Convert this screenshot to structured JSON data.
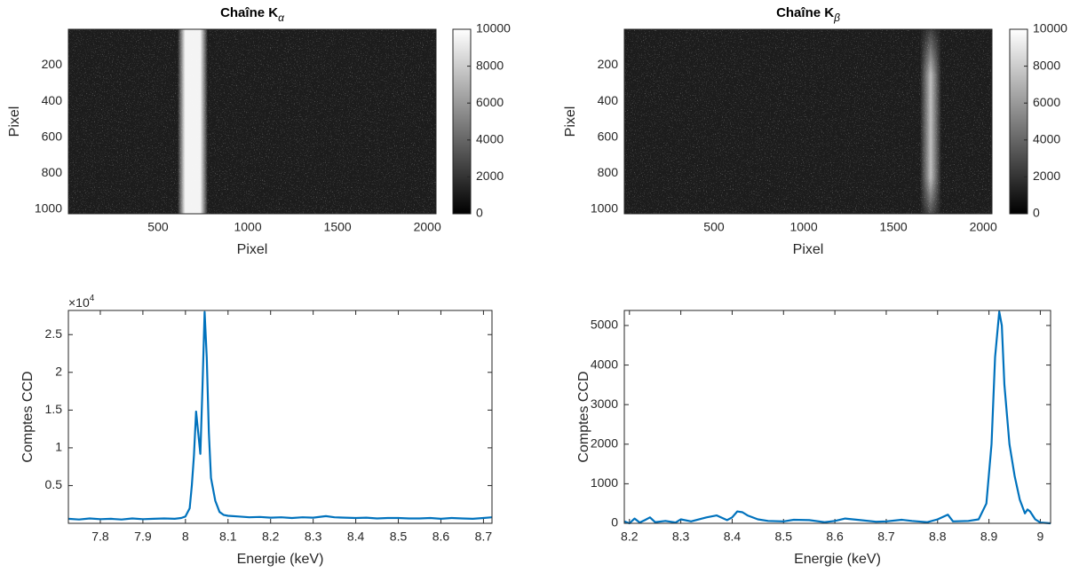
{
  "chart_data": [
    {
      "type": "image",
      "title": "Chaîne K",
      "title_subscript": "α",
      "xlabel": "Pixel",
      "ylabel": "Pixel",
      "xlim": [
        0.5,
        2048.5
      ],
      "ylim": [
        0.5,
        1024.5
      ],
      "y_reversed": true,
      "xticks": [
        500,
        1000,
        1500,
        2000
      ],
      "yticks": [
        200,
        400,
        600,
        800,
        1000
      ],
      "colorbar": {
        "clim": [
          0,
          10000
        ],
        "ticks": [
          0,
          2000,
          4000,
          6000,
          8000,
          10000
        ]
      }
    },
    {
      "type": "image",
      "title": "Chaîne K",
      "title_subscript": "β",
      "xlabel": "Pixel",
      "ylabel": "Pixel",
      "xlim": [
        0.5,
        2048.5
      ],
      "ylim": [
        0.5,
        1024.5
      ],
      "y_reversed": true,
      "xticks": [
        500,
        1000,
        1500,
        2000
      ],
      "yticks": [
        200,
        400,
        600,
        800,
        1000
      ],
      "colorbar": {
        "clim": [
          0,
          10000
        ],
        "ticks": [
          0,
          2000,
          4000,
          6000,
          8000,
          10000
        ]
      }
    },
    {
      "type": "line",
      "xlabel": "Energie (keV)",
      "ylabel": "Comptes CCD",
      "color": "#0072bd",
      "y_multiplier": {
        "base": "×10",
        "exponent": "4"
      },
      "xlim": [
        7.725,
        8.72
      ],
      "ylim": [
        0,
        28200
      ],
      "xticks": [
        7.8,
        7.9,
        8,
        8.1,
        8.2,
        8.3,
        8.4,
        8.5,
        8.6,
        8.7
      ],
      "yticks": [
        {
          "value": 5000,
          "label": "0.5"
        },
        {
          "value": 10000,
          "label": "1"
        },
        {
          "value": 15000,
          "label": "1.5"
        },
        {
          "value": 20000,
          "label": "2"
        },
        {
          "value": 25000,
          "label": "2.5"
        }
      ],
      "x": [
        7.725,
        7.75,
        7.775,
        7.8,
        7.825,
        7.85,
        7.875,
        7.9,
        7.925,
        7.95,
        7.975,
        7.99,
        8.0,
        8.01,
        8.015,
        8.02,
        8.025,
        8.03,
        8.035,
        8.04,
        8.045,
        8.05,
        8.055,
        8.06,
        8.07,
        8.08,
        8.09,
        8.1,
        8.125,
        8.15,
        8.175,
        8.2,
        8.225,
        8.25,
        8.275,
        8.3,
        8.33,
        8.35,
        8.375,
        8.4,
        8.425,
        8.45,
        8.475,
        8.5,
        8.525,
        8.55,
        8.575,
        8.6,
        8.625,
        8.65,
        8.675,
        8.7,
        8.72
      ],
      "values": [
        600,
        500,
        650,
        550,
        600,
        500,
        650,
        550,
        600,
        650,
        600,
        700,
        900,
        2000,
        5000,
        9000,
        14800,
        12000,
        9200,
        18000,
        28000,
        22000,
        12000,
        6000,
        3000,
        1500,
        1100,
        1000,
        900,
        800,
        850,
        750,
        800,
        700,
        800,
        750,
        950,
        800,
        750,
        700,
        750,
        650,
        700,
        700,
        650,
        650,
        700,
        600,
        700,
        650,
        600,
        700,
        800
      ]
    },
    {
      "type": "line",
      "xlabel": "Energie (keV)",
      "ylabel": "Comptes CCD",
      "color": "#0072bd",
      "xlim": [
        8.19,
        9.02
      ],
      "ylim": [
        0,
        5380
      ],
      "xticks": [
        8.2,
        8.3,
        8.4,
        8.5,
        8.6,
        8.7,
        8.8,
        8.9,
        9
      ],
      "yticks": [
        0,
        1000,
        2000,
        3000,
        4000,
        5000
      ],
      "x": [
        8.19,
        8.2,
        8.21,
        8.22,
        8.23,
        8.24,
        8.25,
        8.27,
        8.29,
        8.3,
        8.32,
        8.35,
        8.37,
        8.39,
        8.4,
        8.41,
        8.42,
        8.43,
        8.45,
        8.47,
        8.5,
        8.52,
        8.55,
        8.58,
        8.6,
        8.62,
        8.65,
        8.68,
        8.7,
        8.73,
        8.75,
        8.78,
        8.8,
        8.82,
        8.83,
        8.86,
        8.88,
        8.895,
        8.905,
        8.912,
        8.92,
        8.925,
        8.93,
        8.94,
        8.95,
        8.96,
        8.97,
        8.975,
        8.98,
        8.99,
        9.0,
        9.02
      ],
      "values": [
        50,
        0,
        120,
        20,
        80,
        150,
        30,
        60,
        20,
        100,
        50,
        150,
        200,
        80,
        150,
        300,
        280,
        200,
        100,
        60,
        50,
        90,
        80,
        30,
        60,
        120,
        80,
        40,
        50,
        90,
        60,
        30,
        100,
        220,
        50,
        60,
        100,
        500,
        2000,
        4200,
        5350,
        5000,
        3500,
        2000,
        1200,
        600,
        250,
        350,
        300,
        100,
        20,
        0
      ]
    }
  ]
}
